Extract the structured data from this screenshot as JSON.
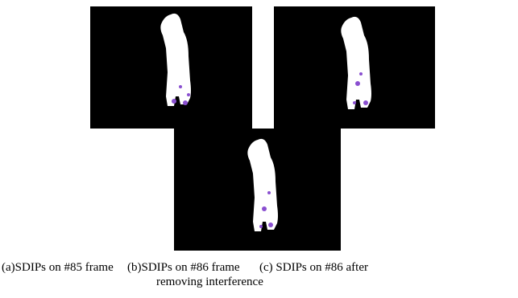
{
  "figure": {
    "captions": [
      {
        "text": "(a)SDIPs on #85 frame"
      },
      {
        "text": "(b)SDIPs on #86 frame"
      },
      {
        "text": "(c) SDIPs on #86 after",
        "continuation": "removing interference"
      }
    ]
  }
}
